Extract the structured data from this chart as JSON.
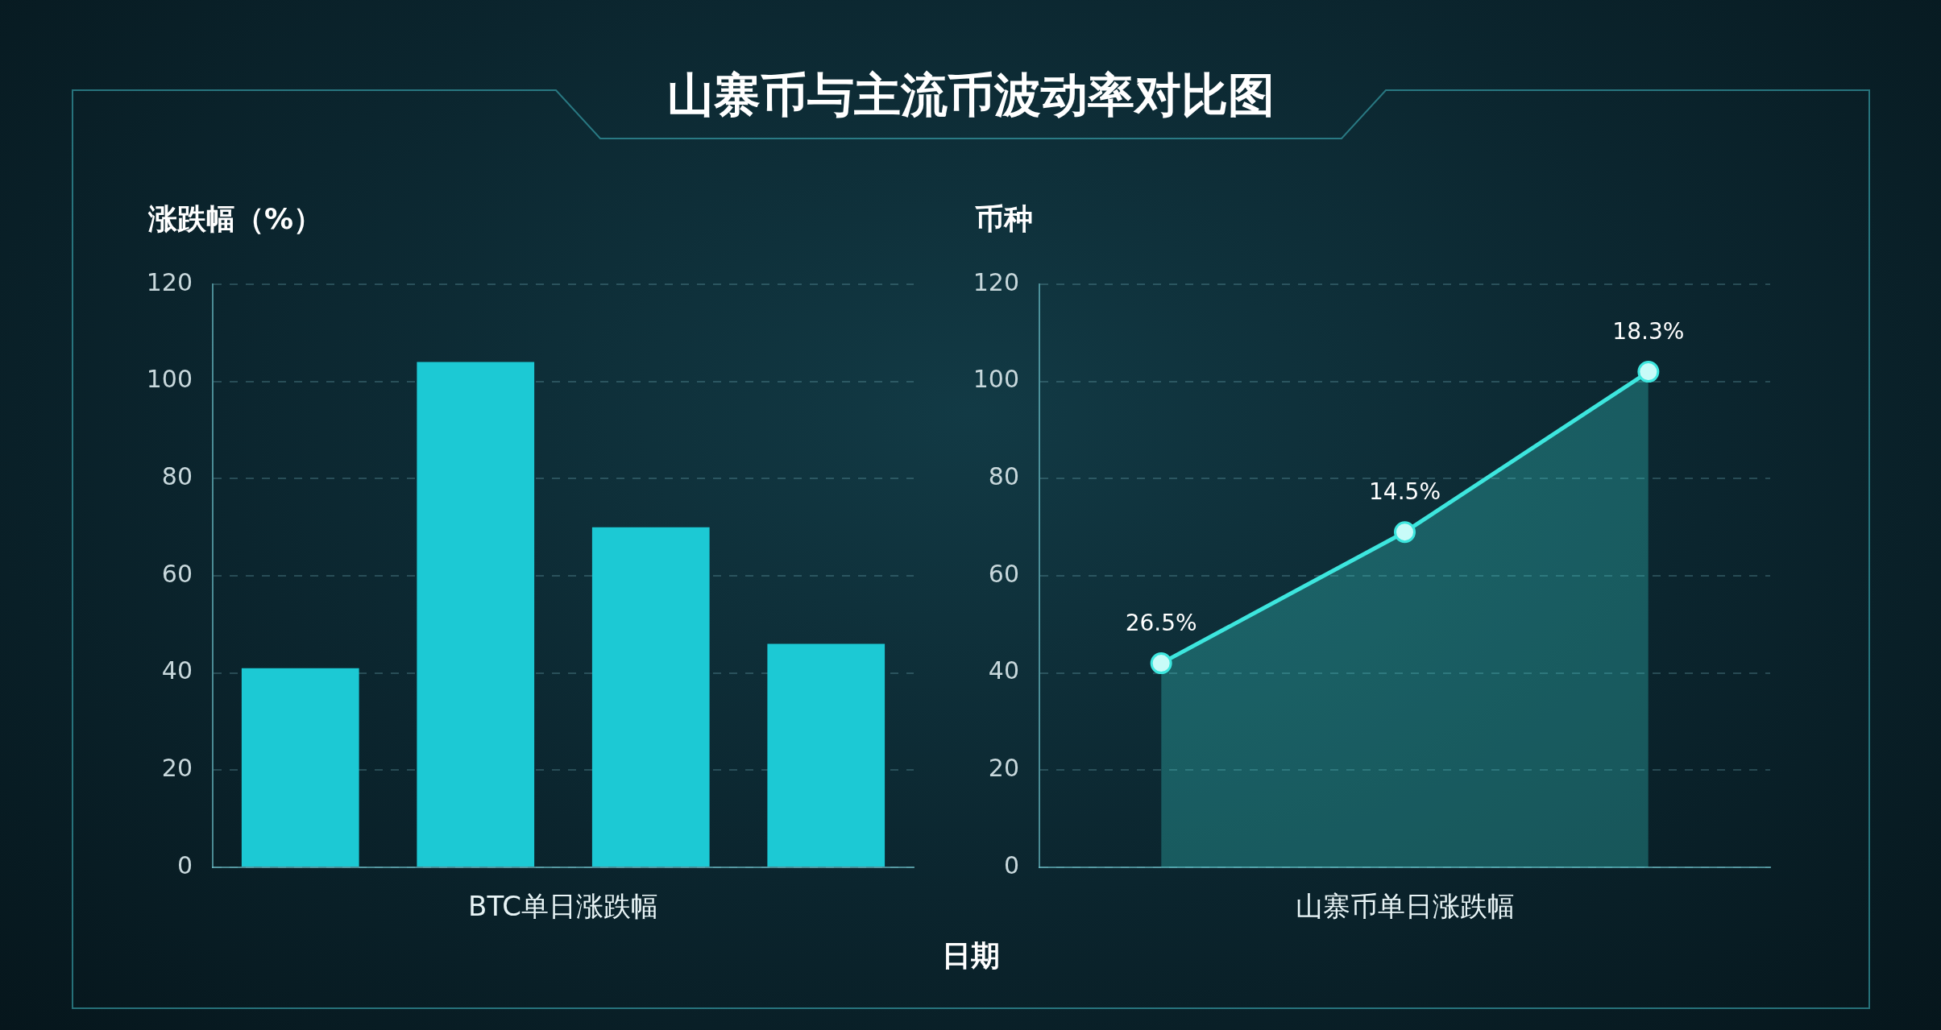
{
  "chart_data": [
    {
      "type": "bar",
      "title": "山寨币与主流币波动率对比图",
      "xlabel": "BTC单日涨跌幅",
      "ylabel": "涨跌幅（%）",
      "categories": [
        null,
        null,
        null,
        null
      ],
      "values": [
        41,
        104,
        70,
        46
      ],
      "color": "#1cc9d4",
      "ylim": [
        0,
        120
      ],
      "yticks": [
        0,
        20,
        40,
        60,
        80,
        100,
        120
      ],
      "grid": "y",
      "annotations": [
        "日期"
      ]
    },
    {
      "type": "area",
      "xlabel": "山寨币单日涨跌幅",
      "ylabel": "币种",
      "categories": [
        null,
        null,
        null
      ],
      "values": [
        42,
        69,
        102
      ],
      "color": "#3de6de",
      "ylim": [
        0,
        120
      ],
      "yticks": [
        0,
        20,
        40,
        60,
        80,
        100,
        120
      ],
      "grid": "y",
      "marker": "circle",
      "annotations": [
        {
          "text": "26.5%",
          "y": 42
        },
        {
          "text": "14.5%",
          "y": 69
        },
        {
          "text": "18.3%",
          "y": 102
        }
      ]
    }
  ]
}
